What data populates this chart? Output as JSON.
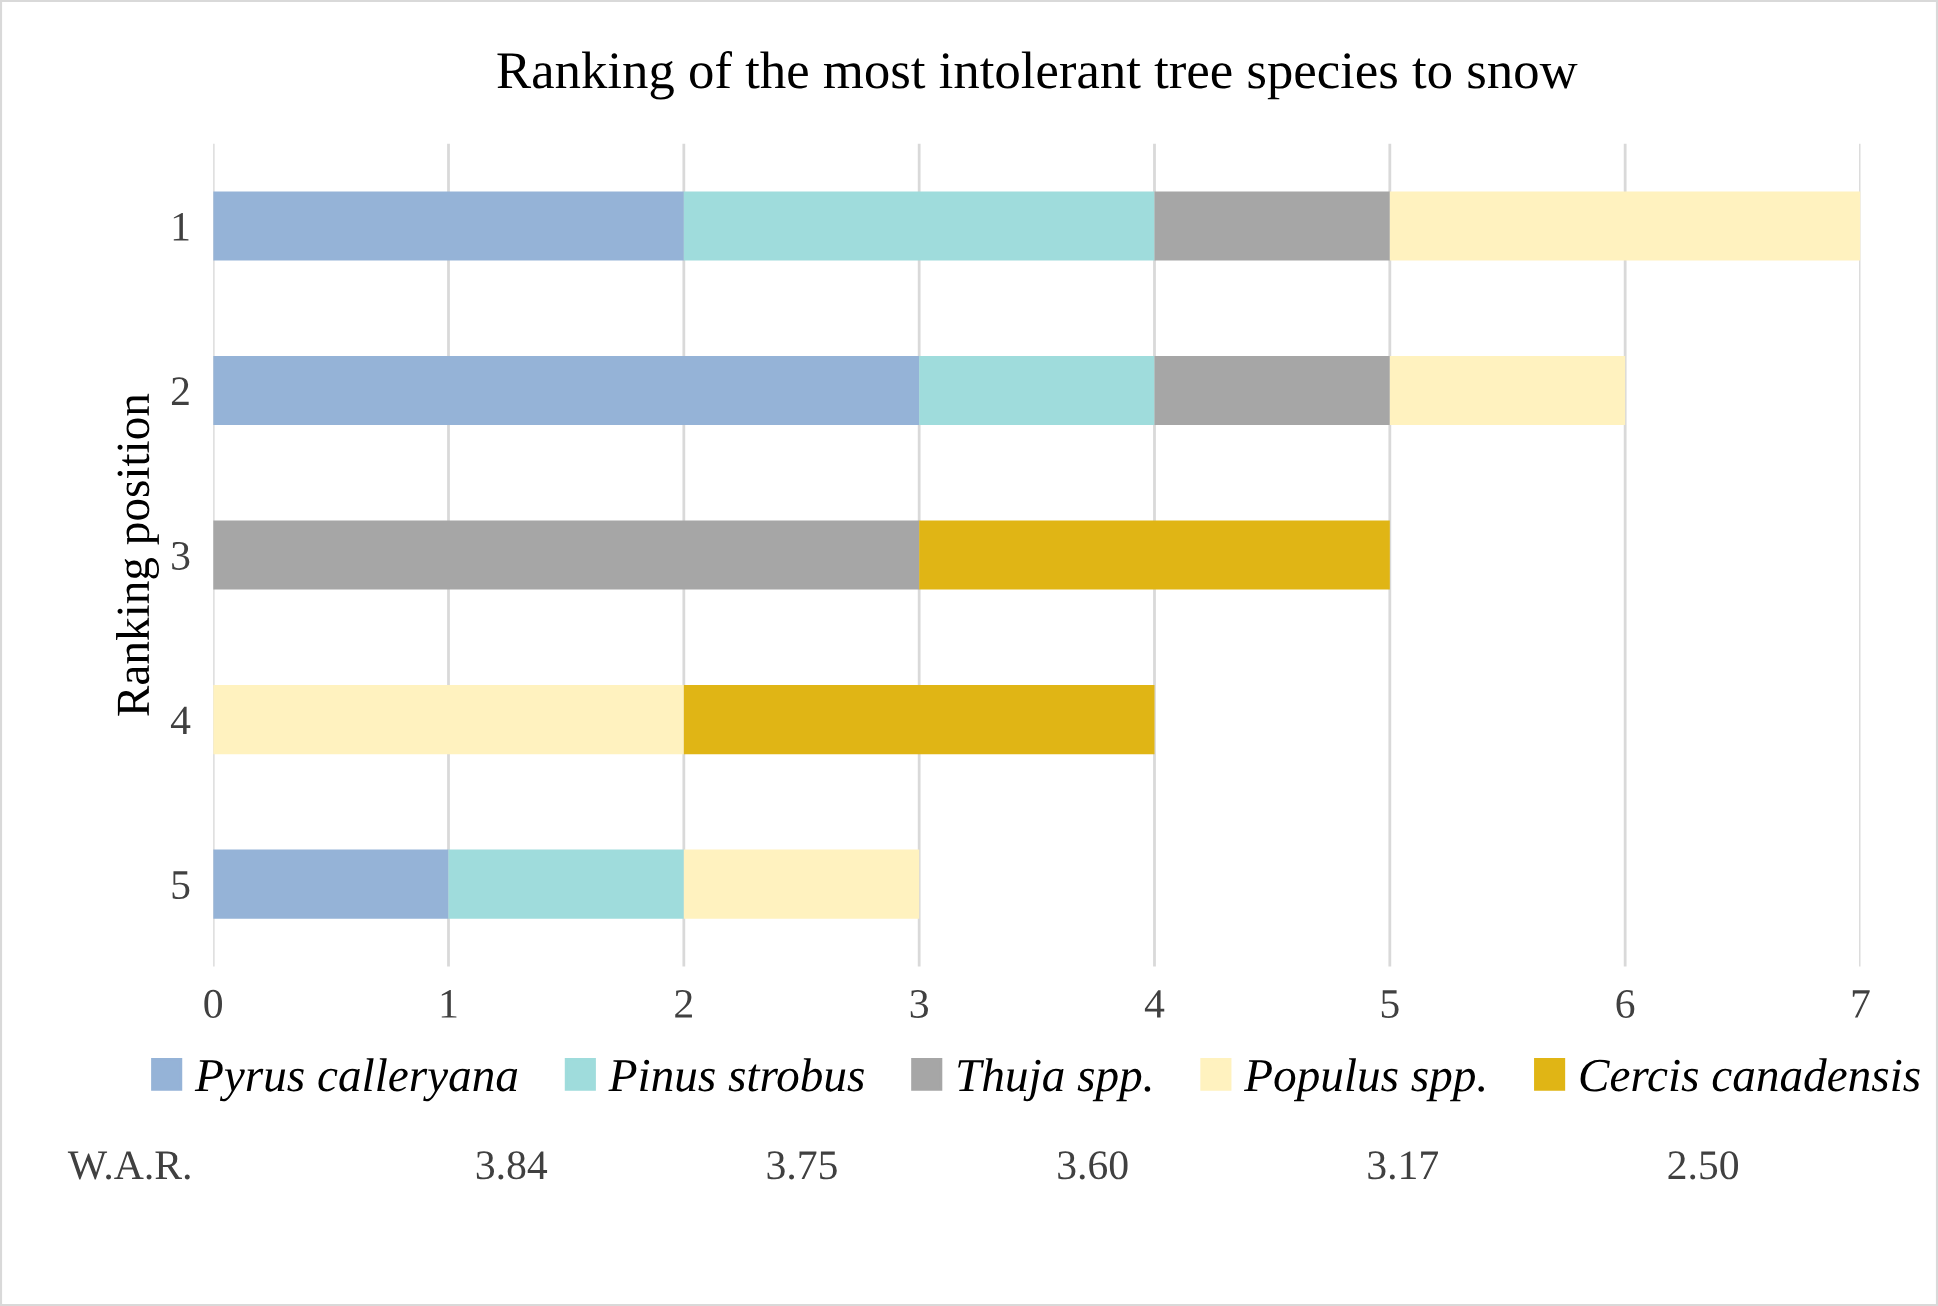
{
  "chart_data": {
    "type": "bar",
    "orientation": "horizontal",
    "stacked": true,
    "title": "Ranking of the most intolerant tree species to snow",
    "ylabel": "Ranking position",
    "categories": [
      "1",
      "2",
      "3",
      "4",
      "5"
    ],
    "series": [
      {
        "name": "Pyrus calleryana",
        "color": "#95b3d7",
        "values": [
          2,
          3,
          null,
          null,
          1
        ]
      },
      {
        "name": "Pinus strobus",
        "color": "#9fdcdc",
        "values": [
          2,
          1,
          null,
          null,
          1
        ]
      },
      {
        "name": "Thuja spp.",
        "color": "#a6a6a6",
        "values": [
          1,
          1,
          3,
          null,
          null
        ]
      },
      {
        "name": "Populus spp.",
        "color": "#fff2bf",
        "values": [
          2,
          1,
          null,
          2,
          1
        ]
      },
      {
        "name": "Cercis canadensis",
        "color": "#e0b515",
        "values": [
          null,
          null,
          2,
          2,
          null
        ]
      }
    ],
    "xlim": [
      0,
      7
    ],
    "xticks": [
      0,
      1,
      2,
      3,
      4,
      5,
      6,
      7
    ],
    "grid": "x",
    "legend": "bottom",
    "annotations": [
      "W.A.R.",
      "3.84",
      "3.75",
      "3.60",
      "3.17",
      "2.50"
    ]
  }
}
